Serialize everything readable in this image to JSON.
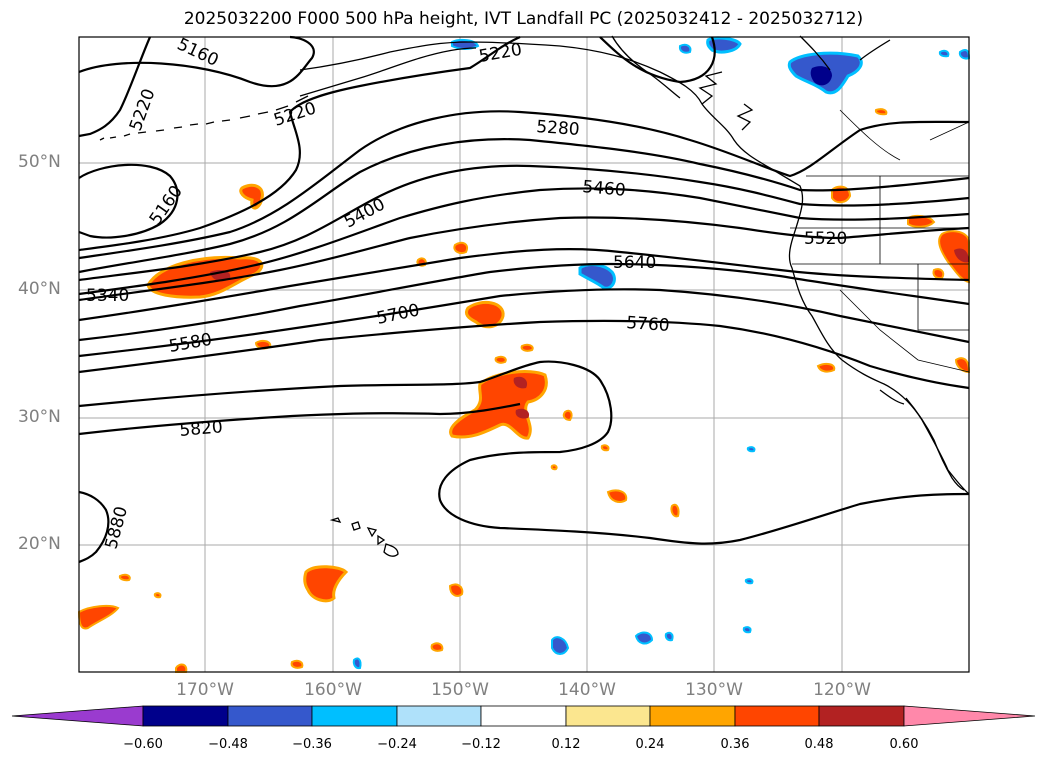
{
  "title": "2025032200 F000 500 hPa height, IVT Landfall PC (2025032412 - 2025032712)",
  "lat_labels": [
    "50°N",
    "40°N",
    "30°N",
    "20°N"
  ],
  "lon_labels": [
    "170°W",
    "160°W",
    "150°W",
    "140°W",
    "130°W",
    "120°W"
  ],
  "contour_labels": [
    "5160",
    "5220",
    "5220",
    "5220",
    "5160",
    "5280",
    "5460",
    "5400",
    "5520",
    "5640",
    "5340",
    "5700",
    "5760",
    "5580",
    "5820",
    "5880"
  ],
  "colorbar": {
    "ticks": [
      "−0.60",
      "−0.48",
      "−0.36",
      "−0.24",
      "−0.12",
      "0.12",
      "0.24",
      "0.36",
      "0.48",
      "0.60"
    ],
    "colors": [
      "#9a3bcf",
      "#00008b",
      "#3558cc",
      "#00bfff",
      "#afe1fa",
      "#ffffff",
      "#fbe68f",
      "#ffa500",
      "#ff4500",
      "#b22222",
      "#ff88aa"
    ]
  },
  "colors": {
    "contour": "#000000",
    "coast": "#000000",
    "grid": "#aaaaaa",
    "axis_label": "#808080"
  }
}
